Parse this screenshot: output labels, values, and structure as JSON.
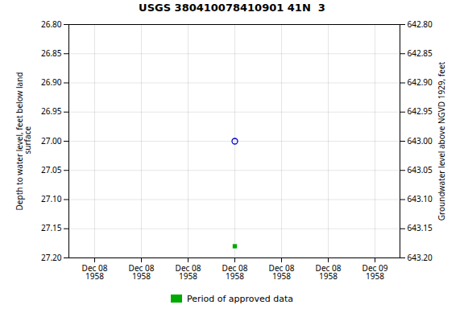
{
  "chart_data": {
    "type": "scatter",
    "title": "USGS 380410078410901 41N  3",
    "categories": [
      "Dec 08\n1958",
      "Dec 08\n1958",
      "Dec 08\n1958",
      "Dec 08\n1958",
      "Dec 08\n1958",
      "Dec 08\n1958",
      "Dec 09\n1958"
    ],
    "series": [
      {
        "color": "#0000cc",
        "marker": "circle",
        "values": [
          null,
          null,
          null,
          27.0,
          null,
          null,
          null
        ]
      },
      {
        "name": "Period of approved data",
        "color": "#00aa00",
        "marker": "square",
        "values": [
          null,
          null,
          null,
          27.18,
          null,
          null,
          null
        ]
      }
    ],
    "y_label": "Depth to water level, feet below land\n surface",
    "y2_label": "Groundwater level above NGVD 1929, feet",
    "ylim": [
      27.2,
      26.8
    ],
    "yticks": [
      {
        "value": 26.8,
        "label": "26.80"
      },
      {
        "value": 26.85,
        "label": "26.85"
      },
      {
        "value": 26.9,
        "label": "26.90"
      },
      {
        "value": 26.95,
        "label": "26.95"
      },
      {
        "value": 27.0,
        "label": "27.00"
      },
      {
        "value": 27.05,
        "label": "27.05"
      },
      {
        "value": 27.1,
        "label": "27.10"
      },
      {
        "value": 27.15,
        "label": "27.15"
      },
      {
        "value": 27.2,
        "label": "27.20"
      }
    ],
    "y2lim": [
      643.2,
      642.8
    ],
    "y2ticks": [
      {
        "value": 642.8,
        "label": "642.80"
      },
      {
        "value": 642.85,
        "label": "642.85"
      },
      {
        "value": 642.9,
        "label": "642.90"
      },
      {
        "value": 642.95,
        "label": "642.95"
      },
      {
        "value": 643.0,
        "label": "643.00"
      },
      {
        "value": 643.05,
        "label": "643.05"
      },
      {
        "value": 643.1,
        "label": "643.10"
      },
      {
        "value": 643.15,
        "label": "643.15"
      },
      {
        "value": 643.2,
        "label": "643.20"
      }
    ],
    "grid": true
  }
}
